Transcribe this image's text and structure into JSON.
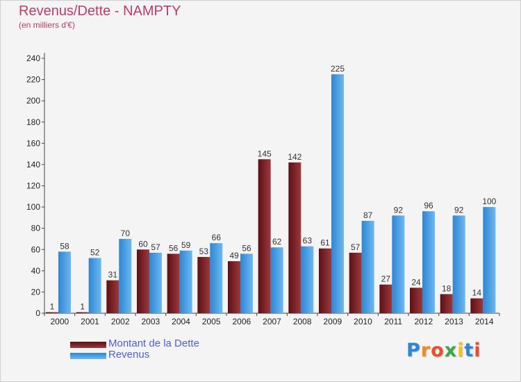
{
  "chart_data": {
    "type": "bar",
    "title": "Revenus/Dette - NAMPTY",
    "subtitle": "(en milliers d'€)",
    "categories": [
      "2000",
      "2001",
      "2002",
      "2003",
      "2004",
      "2005",
      "2006",
      "2007",
      "2008",
      "2009",
      "2010",
      "2011",
      "2012",
      "2013",
      "2014"
    ],
    "series": [
      {
        "name": "Montant de la Dette",
        "color": "#7b1c22",
        "values": [
          1,
          1,
          31,
          60,
          56,
          53,
          49,
          145,
          142,
          61,
          57,
          27,
          24,
          18,
          14
        ]
      },
      {
        "name": "Revenus",
        "color": "#4a9ee0",
        "values": [
          58,
          52,
          70,
          57,
          59,
          66,
          56,
          62,
          63,
          225,
          87,
          92,
          96,
          92,
          100
        ]
      }
    ],
    "yticks": [
      0,
      20,
      40,
      60,
      80,
      100,
      120,
      140,
      160,
      180,
      200,
      220,
      240
    ],
    "ylim": [
      0,
      240
    ],
    "grid": false,
    "legend_position": "bottom-left"
  },
  "logo": {
    "letters": [
      "P",
      "r",
      "o",
      "x",
      "i",
      "t",
      "i"
    ],
    "colors": [
      "#2a86d6",
      "#f08a1c",
      "#e8502c",
      "#3aa84a",
      "#f5c21b",
      "#2a86d6",
      "#e8502c"
    ]
  }
}
